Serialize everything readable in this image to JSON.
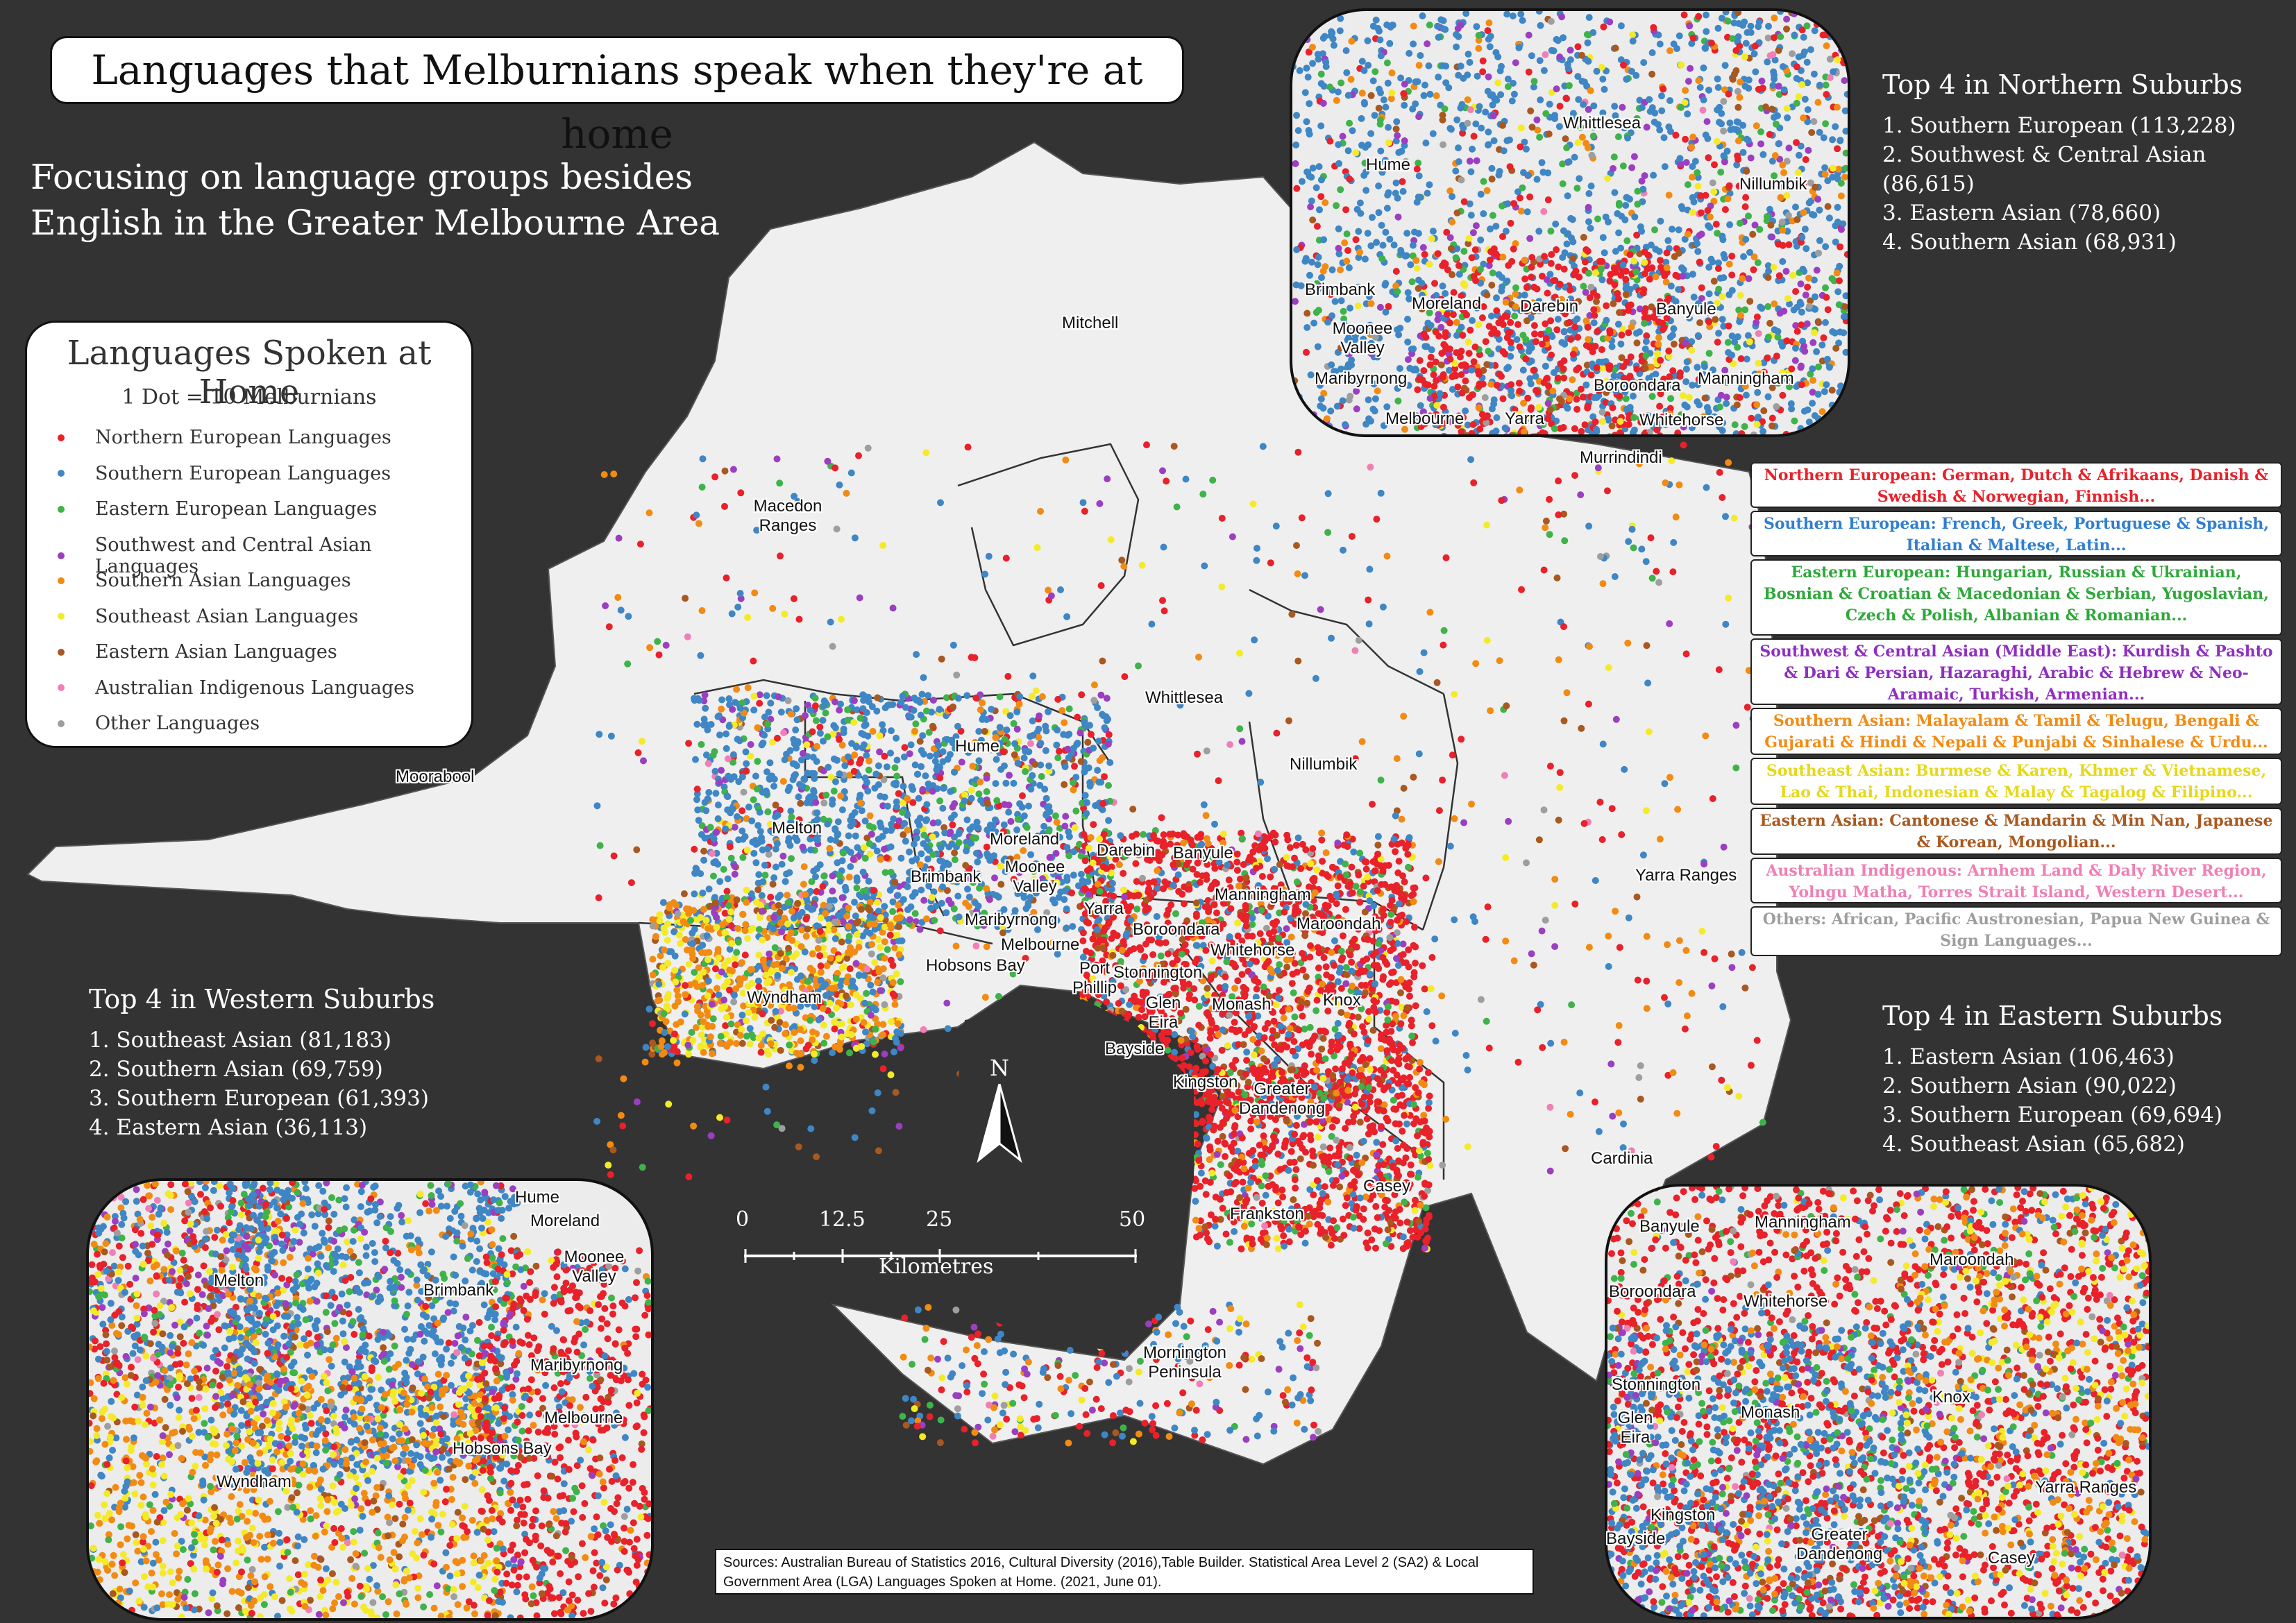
{
  "title": "Languages that Melburnians speak when they're at home",
  "subtitle_line1": "Focusing on language groups besides",
  "subtitle_line2": "English in the Greater Melbourne Area",
  "legend": {
    "title": "Languages Spoken at Home",
    "subtitle": "1 Dot = 10 Melburnians",
    "items": [
      {
        "label": "Northern European Languages",
        "color": "#e8212a"
      },
      {
        "label": "Southern European Languages",
        "color": "#3f86c5"
      },
      {
        "label": "Eastern European Languages",
        "color": "#3fb24a"
      },
      {
        "label": "Southwest and Central Asian Languages",
        "color": "#9b3fc0"
      },
      {
        "label": "Southern Asian Languages",
        "color": "#f28b13"
      },
      {
        "label": "Southeast Asian Languages",
        "color": "#f4ea2a"
      },
      {
        "label": "Eastern Asian Languages",
        "color": "#a9581f"
      },
      {
        "label": "Australian Indigenous Languages",
        "color": "#f07fb5"
      },
      {
        "label": "Other Languages",
        "color": "#9e9e9e"
      }
    ]
  },
  "northern": {
    "heading": "Top 4 in Northern Suburbs",
    "items": [
      "1. Southern European (113,228)",
      "2. Southwest & Central Asian (86,615)",
      "3. Eastern Asian (78,660)",
      "4. Southern Asian (68,931)"
    ]
  },
  "western": {
    "heading": "Top 4 in Western Suburbs",
    "items": [
      "1. Southeast Asian (81,183)",
      "2. Southern Asian (69,759)",
      "3. Southern European (61,393)",
      "4. Eastern Asian (36,113)"
    ]
  },
  "eastern": {
    "heading": "Top 4 in Eastern Suburbs",
    "items": [
      "1. Eastern Asian (106,463)",
      "2. Southern Asian (90,022)",
      "3. Southern European (69,694)",
      "4. Southeast Asian (65,682)"
    ]
  },
  "descriptions": [
    {
      "text": "Northern European: German, Dutch & Afrikaans, Danish & Swedish & Norwegian, Finnish...",
      "color": "#e8212a"
    },
    {
      "text": "Southern European: French, Greek, Portuguese & Spanish, Italian & Maltese, Latin...",
      "color": "#2f7fd0"
    },
    {
      "text": "Eastern European: Hungarian, Russian & Ukrainian, Bosnian & Croatian & Macedonian & Serbian, Yugoslavian, Czech & Polish, Albanian & Romanian...",
      "color": "#2ea83a"
    },
    {
      "text": "Southwest & Central Asian (Middle East): Kurdish & Pashto & Dari & Persian, Hazaraghi, Arabic & Hebrew & Neo-Aramaic, Turkish, Armenian...",
      "color": "#8f2fc0"
    },
    {
      "text": "Southern Asian: Malayalam & Tamil & Telugu, Bengali & Gujarati & Hindi & Nepali & Punjabi & Sinhalese & Urdu...",
      "color": "#f28b13"
    },
    {
      "text": "Southeast Asian: Burmese & Karen, Khmer & Vietnamese, Lao & Thai, Indonesian & Malay & Tagalog & Filipino...",
      "color": "#e6d81a"
    },
    {
      "text": "Eastern Asian: Cantonese & Mandarin & Min Nan, Japanese & Korean, Mongolian...",
      "color": "#a9581f"
    },
    {
      "text": "Australian Indigenous: Arnhem Land & Daly River Region, Yolngu Matha, Torres Strait Island, Western Desert...",
      "color": "#f07fb5"
    },
    {
      "text": "Others: African, Pacific Austronesian, Papua New Guinea & Sign Languages...",
      "color": "#9e9e9e"
    }
  ],
  "map_labels": [
    "Mitchell",
    "Macedon Ranges",
    "Murrindindi",
    "Whittlesea",
    "Hume",
    "Nillumbik",
    "Melton",
    "Moorabool",
    "Moreland",
    "Moonee Valley",
    "Brimbank",
    "Darebin",
    "Banyule",
    "Manningham",
    "Yarra",
    "Maribyrnong",
    "Melbourne",
    "Boroondara",
    "Maroondah",
    "Hobsons Bay",
    "Whitehorse",
    "Port Phillip",
    "Stonnington",
    "Yarra Ranges",
    "Wyndham",
    "Glen Eira",
    "Monash",
    "Knox",
    "Bayside",
    "Kingston",
    "Greater Dandenong",
    "Casey",
    "Cardinia",
    "Frankston",
    "Mornington Peninsula"
  ],
  "inset_north_labels": [
    "Whittlesea",
    "Hume",
    "Nillumbik",
    "Brimbank",
    "Moreland",
    "Darebin",
    "Banyule",
    "Moonee Valley",
    "Maribyrnong",
    "Boroondara",
    "Manningham",
    "Melbourne",
    "Yarra",
    "Whitehorse"
  ],
  "inset_west_labels": [
    "Hume",
    "Moreland",
    "Moonee Valley",
    "Melton",
    "Brimbank",
    "Maribyrnong",
    "Melbourne",
    "Hobsons Bay",
    "Wyndham"
  ],
  "inset_east_labels": [
    "Banyule",
    "Manningham",
    "Maroondah",
    "Boroondara",
    "Whitehorse",
    "Stonnington",
    "Glen Eira",
    "Monash",
    "Knox",
    "Yarra Ranges",
    "Kingston",
    "Bayside",
    "Greater Dandenong",
    "Casey"
  ],
  "north_arrow": "N",
  "scale": {
    "ticks": [
      "0",
      "12.5",
      "25",
      "50"
    ],
    "unit": "Kilometres"
  },
  "sources": "Sources: Australian Bureau of Statistics 2016, Cultural Diversity (2016),Table Builder. Statistical Area Level 2 (SA2) & Local Government Area (LGA) Languages Spoken at Home. (2021, June 01)."
}
